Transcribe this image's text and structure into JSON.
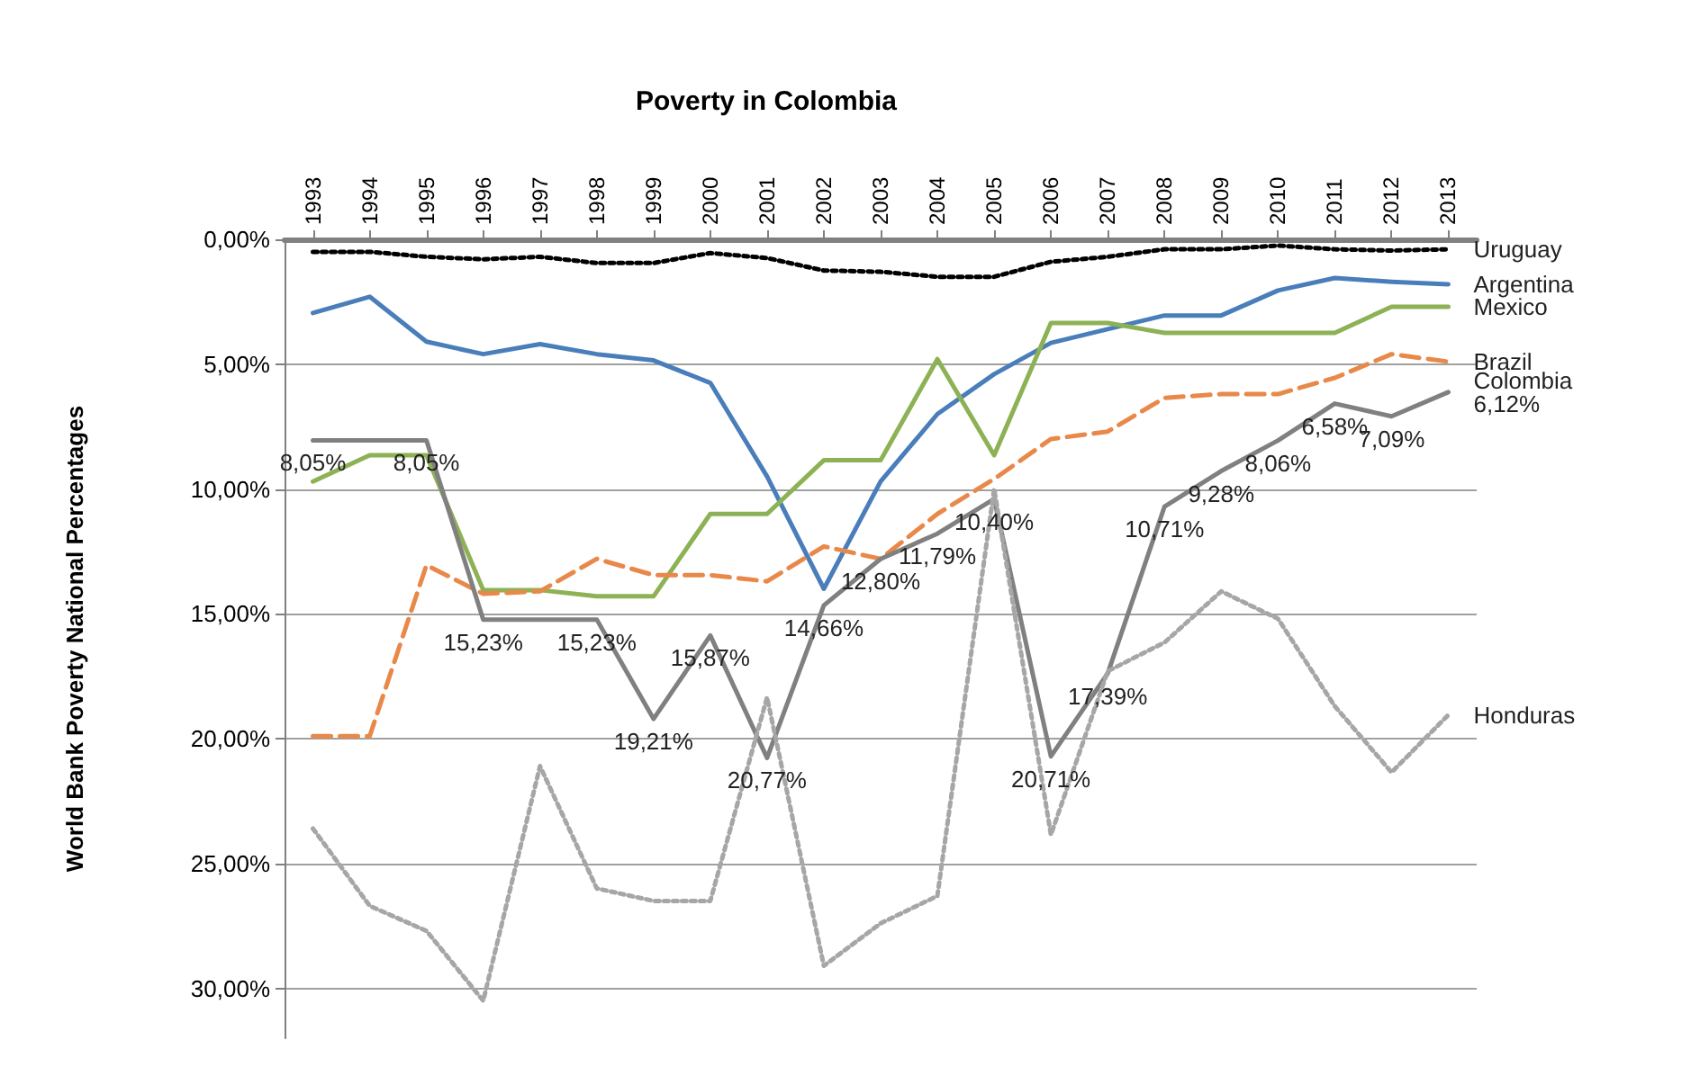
{
  "chart_data": {
    "type": "line",
    "title": "Poverty in Colombia",
    "ylabel": "World Bank Poverty National Percentages",
    "categories": [
      "1993",
      "1994",
      "1995",
      "1996",
      "1997",
      "1998",
      "1999",
      "2000",
      "2001",
      "2002",
      "2003",
      "2004",
      "2005",
      "2006",
      "2007",
      "2008",
      "2009",
      "2010",
      "2011",
      "2012",
      "2013"
    ],
    "ylim": [
      32,
      0
    ],
    "yticks": [
      {
        "value": 0,
        "label": "0,00%"
      },
      {
        "value": 5,
        "label": "5,00%"
      },
      {
        "value": 10,
        "label": "10,00%"
      },
      {
        "value": 15,
        "label": "15,00%"
      },
      {
        "value": 20,
        "label": "20,00%"
      },
      {
        "value": 25,
        "label": "25,00%"
      },
      {
        "value": 30,
        "label": "30,00%"
      }
    ],
    "grid": "y",
    "legend": false,
    "marker": "none",
    "series": [
      {
        "name": "Uruguay",
        "color": "#000000",
        "line_style": "dotted",
        "values": [
          0.5,
          0.5,
          0.7,
          0.8,
          0.7,
          0.95,
          0.95,
          0.55,
          0.75,
          1.25,
          1.3,
          1.5,
          1.5,
          0.9,
          0.7,
          0.4,
          0.4,
          0.25,
          0.4,
          0.45,
          0.4
        ]
      },
      {
        "name": "Argentina",
        "color": "#4a7ebb",
        "line_style": "solid",
        "values": [
          2.95,
          2.3,
          4.1,
          4.6,
          4.2,
          4.6,
          4.85,
          5.75,
          9.5,
          14.0,
          9.7,
          7.0,
          5.4,
          4.15,
          3.6,
          3.05,
          3.05,
          2.05,
          1.55,
          1.7,
          1.8
        ]
      },
      {
        "name": "Mexico",
        "color": "#8db255",
        "line_style": "solid",
        "values": [
          9.7,
          8.65,
          8.65,
          14.05,
          14.05,
          14.3,
          14.3,
          11.0,
          11.0,
          8.85,
          8.85,
          4.8,
          8.65,
          3.35,
          3.35,
          3.75,
          3.75,
          3.75,
          3.75,
          2.7,
          2.7
        ]
      },
      {
        "name": "Brazil",
        "color": "#e8894a",
        "line_style": "dashed",
        "values": [
          19.9,
          19.9,
          13.05,
          14.2,
          14.1,
          12.8,
          13.45,
          13.45,
          13.7,
          12.3,
          12.8,
          11.0,
          9.6,
          8.0,
          7.7,
          6.35,
          6.2,
          6.2,
          5.55,
          4.6,
          4.9
        ]
      },
      {
        "name": "Colombia",
        "color": "#808080",
        "line_style": "solid",
        "values": [
          8.05,
          8.05,
          8.05,
          15.23,
          15.23,
          15.23,
          19.21,
          15.87,
          20.77,
          14.66,
          12.8,
          11.79,
          10.4,
          20.71,
          17.39,
          10.71,
          9.28,
          8.06,
          6.58,
          7.09,
          6.12
        ],
        "value_labels": [
          "8,05%",
          null,
          "8,05%",
          "15,23%",
          null,
          "15,23%",
          "19,21%",
          "15,87%",
          "20,77%",
          "14,66%",
          "12,80%",
          "11,79%",
          "10,40%",
          "20,71%",
          "17,39%",
          "10,71%",
          "9,28%",
          "8,06%",
          "6,58%",
          "7,09%",
          "6,12%"
        ]
      },
      {
        "name": "Honduras",
        "color": "#a6a6a6",
        "line_style": "dotted",
        "values": [
          23.6,
          26.7,
          27.7,
          30.5,
          21.1,
          26.0,
          26.5,
          26.5,
          18.35,
          29.1,
          27.4,
          26.3,
          10.0,
          23.85,
          17.3,
          16.15,
          14.1,
          15.2,
          18.7,
          21.35,
          19.05
        ]
      }
    ]
  }
}
